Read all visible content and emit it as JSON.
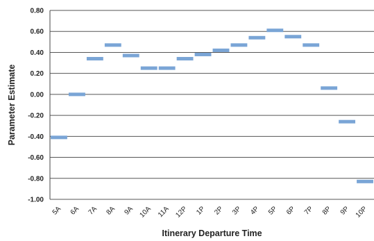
{
  "chart_data": {
    "type": "line",
    "title": "",
    "xlabel": "Itinerary Departure Time",
    "ylabel": "Parameter Estimate",
    "categories": [
      "5A",
      "6A",
      "7A",
      "8A",
      "9A",
      "10A",
      "11A",
      "12P",
      "1P",
      "2P",
      "3P",
      "4P",
      "5P",
      "6P",
      "7P",
      "8P",
      "9P",
      "10P"
    ],
    "values": [
      -0.41,
      0.0,
      0.34,
      0.47,
      0.37,
      0.25,
      0.25,
      0.34,
      0.38,
      0.42,
      0.47,
      0.54,
      0.61,
      0.55,
      0.47,
      0.06,
      -0.26,
      -0.83
    ],
    "ylim": [
      -1.0,
      0.8
    ],
    "yticks": [
      "0.80",
      "0.60",
      "0.40",
      "0.20",
      "0.00",
      "-0.20",
      "-0.40",
      "-0.60",
      "-0.80",
      "-1.00"
    ],
    "grid": true,
    "marker_style": "horizontal dash",
    "colors": {
      "series": "#7aa5d6",
      "grid": "#555555",
      "axis": "#444444"
    }
  }
}
